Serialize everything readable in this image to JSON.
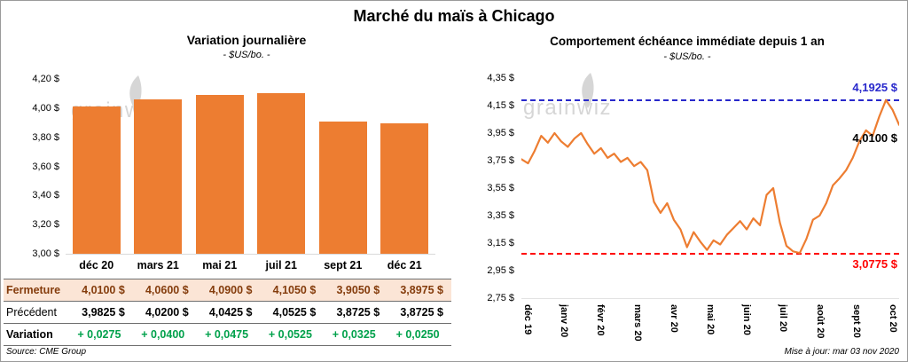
{
  "page": {
    "title": "Marché du maïs à Chicago",
    "source": "Source: CME Group",
    "updated": "Mise à jour: mar 03 nov 2020",
    "watermark": "grainwiz"
  },
  "left_chart": {
    "title": "Variation journalière",
    "subtitle": "- $US/bo. -"
  },
  "right_chart": {
    "title": "Comportement échéance immédiate depuis 1 an",
    "subtitle": "- $US/bo. -",
    "high_label": "4,1925 $",
    "low_label": "3,0775 $",
    "last_label": "4,0100 $"
  },
  "table": {
    "rows": [
      {
        "label": "Fermeture",
        "values": [
          "4,0100 $",
          "4,0600 $",
          "4,0900 $",
          "4,1050 $",
          "3,9050 $",
          "3,8975 $"
        ]
      },
      {
        "label": "Précédent",
        "values": [
          "3,9825 $",
          "4,0200 $",
          "4,0425 $",
          "4,0525 $",
          "3,8725 $",
          "3,8725 $"
        ]
      },
      {
        "label": "Variation",
        "values": [
          "+ 0,0275",
          "+ 0,0400",
          "+ 0,0475",
          "+ 0,0525",
          "+ 0,0325",
          "+ 0,0250"
        ]
      }
    ]
  },
  "colors": {
    "bar": "#ED7D31",
    "line": "#ED7D31",
    "high": "#2929CC",
    "low": "#FF0000",
    "variation": "#00A14B",
    "fermeture_bg": "#FBE5D6",
    "fermeture_text": "#843C0C"
  },
  "chart_data": [
    {
      "type": "bar",
      "title": "Variation journalière",
      "ylabel": "$US/bo.",
      "categories": [
        "déc 20",
        "mars 21",
        "mai 21",
        "juil 21",
        "sept 21",
        "déc 21"
      ],
      "values": [
        4.01,
        4.06,
        4.09,
        4.105,
        3.905,
        3.8975
      ],
      "ylim": [
        3.0,
        4.2
      ],
      "yticks": [
        "4,20 $",
        "4,00 $",
        "3,80 $",
        "3,60 $",
        "3,40 $",
        "3,20 $",
        "3,00 $"
      ],
      "grid": false,
      "legend": false
    },
    {
      "type": "line",
      "title": "Comportement échéance immédiate depuis 1 an",
      "ylabel": "$US/bo.",
      "x_ticks": [
        "déc 19",
        "janv 20",
        "févr 20",
        "mars 20",
        "avr 20",
        "mai 20",
        "juin 20",
        "juil 20",
        "août 20",
        "sept 20",
        "oct 20"
      ],
      "values": [
        3.76,
        3.73,
        3.82,
        3.93,
        3.88,
        3.95,
        3.89,
        3.85,
        3.91,
        3.95,
        3.87,
        3.8,
        3.84,
        3.77,
        3.8,
        3.74,
        3.77,
        3.71,
        3.74,
        3.68,
        3.45,
        3.37,
        3.44,
        3.32,
        3.25,
        3.12,
        3.23,
        3.16,
        3.1,
        3.17,
        3.14,
        3.21,
        3.26,
        3.31,
        3.25,
        3.33,
        3.28,
        3.5,
        3.55,
        3.3,
        3.13,
        3.09,
        3.078,
        3.18,
        3.32,
        3.35,
        3.44,
        3.57,
        3.62,
        3.68,
        3.77,
        3.89,
        3.97,
        3.93,
        4.07,
        4.19,
        4.12,
        4.01
      ],
      "ylim": [
        2.75,
        4.35
      ],
      "yticks": [
        "4,35 $",
        "4,15 $",
        "3,95 $",
        "3,75 $",
        "3,55 $",
        "3,35 $",
        "3,15 $",
        "2,95 $",
        "2,75 $"
      ],
      "high": 4.1925,
      "low": 3.0775,
      "last": 4.01,
      "grid": false,
      "legend": false
    }
  ]
}
